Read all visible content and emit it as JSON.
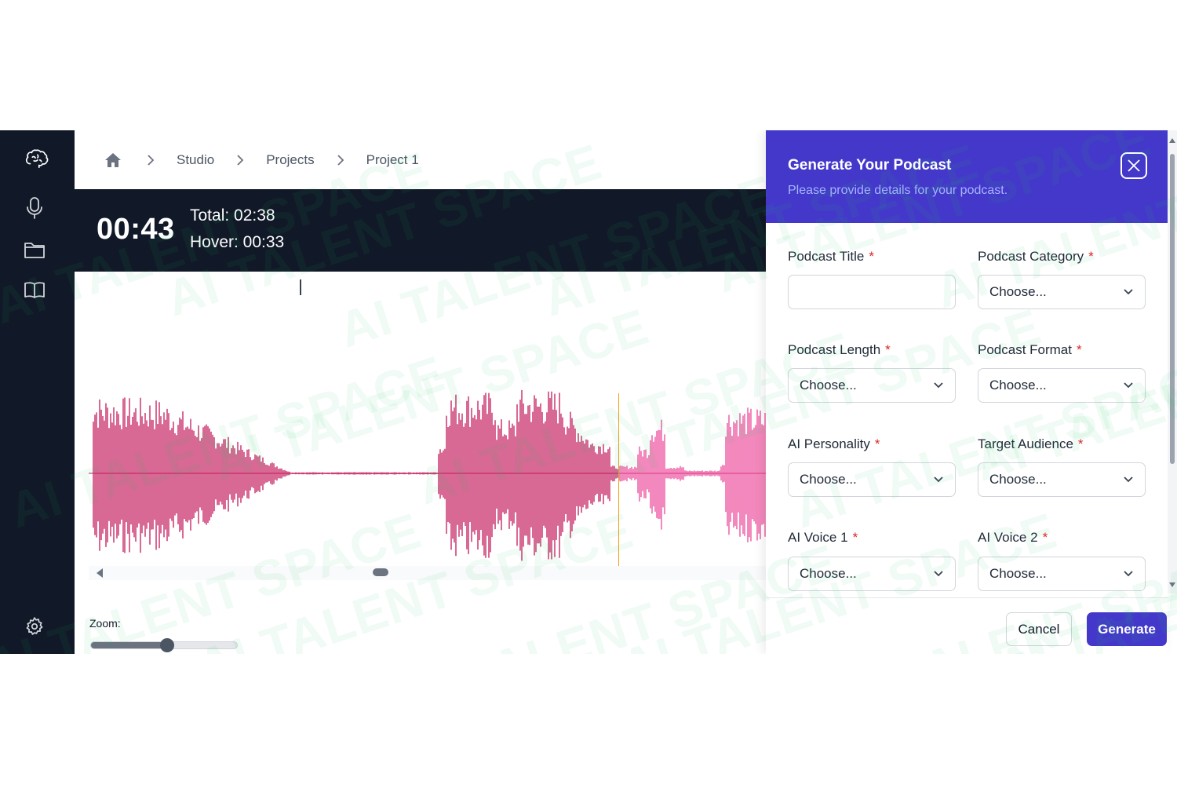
{
  "breadcrumb": {
    "items": [
      "Studio",
      "Projects",
      "Project 1"
    ]
  },
  "timer": {
    "current": "00:43",
    "total": "Total: 02:38",
    "hover": "Hover: 00:33"
  },
  "waveform": {
    "color_played": "#c2185b",
    "color_unplayed": "#ec4899",
    "playhead_color": "#f59e0b"
  },
  "zoom": {
    "label": "Zoom:",
    "value_fraction": 0.52
  },
  "sidebar": {
    "items": [
      "brain-logo-icon",
      "microphone-icon",
      "folder-icon",
      "book-icon"
    ],
    "footer": "gear-icon"
  },
  "panel": {
    "title": "Generate Your Podcast",
    "subtitle": "Please provide details for your podcast.",
    "accent": "#4338ca",
    "fields": {
      "title": {
        "label": "Podcast Title",
        "value": ""
      },
      "category": {
        "label": "Podcast Category",
        "value": "Choose..."
      },
      "length": {
        "label": "Podcast Length",
        "value": "Choose..."
      },
      "format": {
        "label": "Podcast Format",
        "value": "Choose..."
      },
      "personality": {
        "label": "AI Personality",
        "value": "Choose..."
      },
      "audience": {
        "label": "Target Audience",
        "value": "Choose..."
      },
      "voice1": {
        "label": "AI Voice 1",
        "value": "Choose..."
      },
      "voice2": {
        "label": "AI Voice 2",
        "value": "Choose..."
      }
    },
    "required_mark": "*",
    "cancel_label": "Cancel",
    "generate_label": "Generate"
  },
  "watermark": {
    "text": "AI TALENT SPACE"
  }
}
